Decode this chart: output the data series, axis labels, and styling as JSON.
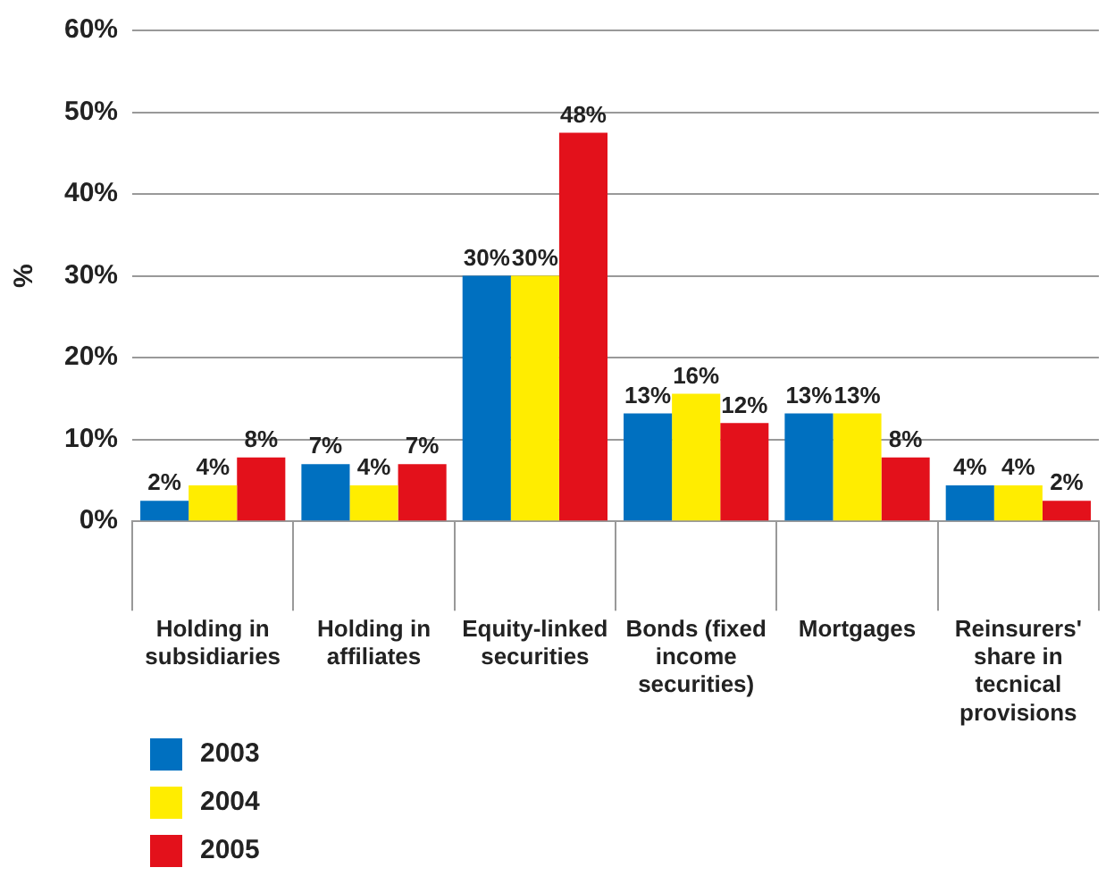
{
  "chart_data": {
    "type": "bar",
    "ylabel": "%",
    "categories": [
      "Holding in subsidiaries",
      "Holding in affiliates",
      "Equity-linked securities",
      "Bonds (fixed income securities)",
      "Mortgages",
      "Reinsurers' share in tecnical provisions"
    ],
    "series": [
      {
        "name": "2003",
        "color": "#0070c0",
        "values": [
          2.5,
          7,
          30,
          13.2,
          13.2,
          4.4
        ],
        "value_labels": [
          "2%",
          "7%",
          "30%",
          "13%",
          "13%",
          "4%"
        ]
      },
      {
        "name": "2004",
        "color": "#ffed00",
        "values": [
          4.4,
          4.4,
          30,
          15.6,
          13.2,
          4.4
        ],
        "value_labels": [
          "4%",
          "4%",
          "30%",
          "16%",
          "13%",
          "4%"
        ]
      },
      {
        "name": "2005",
        "color": "#e3111b",
        "values": [
          7.8,
          7,
          47.5,
          12,
          7.8,
          2.5
        ],
        "value_labels": [
          "8%",
          "7%",
          "48%",
          "12%",
          "8%",
          "2%"
        ]
      }
    ],
    "ylim": [
      0,
      60
    ],
    "yticks": [
      {
        "value": 0,
        "label": "0%"
      },
      {
        "value": 10,
        "label": "10%"
      },
      {
        "value": 20,
        "label": "20%"
      },
      {
        "value": 30,
        "label": "30%"
      },
      {
        "value": 40,
        "label": "40%"
      },
      {
        "value": 50,
        "label": "50%"
      },
      {
        "value": 60,
        "label": "60%"
      }
    ],
    "grid": "y",
    "legend": "bottom left"
  }
}
